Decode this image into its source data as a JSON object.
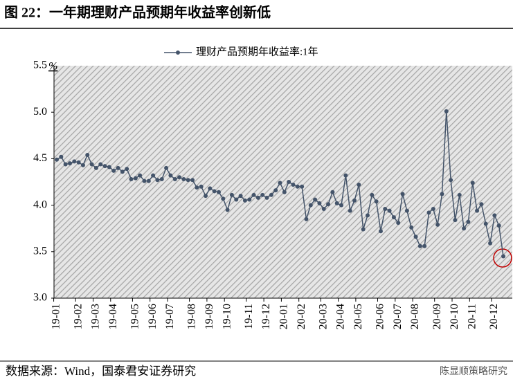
{
  "chart_data": {
    "type": "line",
    "title": "图 22：一年期理财产品预期年收益率创新低",
    "y_unit": "%",
    "source": "数据来源：Wind，国泰君安证券研究",
    "watermark": "陈显顺策略研究",
    "categories": [
      "19-01",
      null,
      null,
      null,
      null,
      "19-02",
      null,
      null,
      null,
      "19-03",
      null,
      null,
      null,
      "19-04",
      null,
      null,
      null,
      null,
      "19-05",
      null,
      null,
      null,
      "19-06",
      null,
      null,
      null,
      "19-07",
      null,
      null,
      null,
      null,
      "19-08",
      null,
      null,
      null,
      "19-09",
      null,
      null,
      null,
      "19-10",
      null,
      null,
      null,
      null,
      "19-11",
      null,
      null,
      null,
      "19-12",
      null,
      null,
      null,
      "20-01",
      null,
      null,
      null,
      "20-02",
      null,
      null,
      null,
      null,
      "20-03",
      null,
      null,
      null,
      "20-04",
      null,
      null,
      null,
      "20-05",
      null,
      null,
      null,
      null,
      "20-06",
      null,
      null,
      null,
      "20-07",
      null,
      null,
      null,
      "20-08",
      null,
      null,
      null,
      null,
      "20-09",
      null,
      null,
      null,
      "20-10",
      null,
      null,
      null,
      "20-11",
      null,
      null,
      null,
      null,
      "20-12",
      null,
      null
    ],
    "series": [
      {
        "name": "理财产品预期年收益率:1年",
        "color": "#44546a",
        "values": [
          4.49,
          4.52,
          4.44,
          4.45,
          4.47,
          4.46,
          4.43,
          4.54,
          4.44,
          4.4,
          4.44,
          4.42,
          4.41,
          4.37,
          4.4,
          4.36,
          4.39,
          4.28,
          4.29,
          4.32,
          4.26,
          4.26,
          4.32,
          4.27,
          4.28,
          4.4,
          4.32,
          4.28,
          4.3,
          4.28,
          4.27,
          4.27,
          4.19,
          4.2,
          4.1,
          4.18,
          4.15,
          4.14,
          4.07,
          3.95,
          4.11,
          4.06,
          4.1,
          4.05,
          4.06,
          4.11,
          4.08,
          4.11,
          4.08,
          4.11,
          4.16,
          4.24,
          4.14,
          4.25,
          4.22,
          4.2,
          4.2,
          3.85,
          4.0,
          4.06,
          4.02,
          3.96,
          4.01,
          4.14,
          4.02,
          4.0,
          4.32,
          3.94,
          4.05,
          4.22,
          3.74,
          3.89,
          4.11,
          4.04,
          3.72,
          3.96,
          3.94,
          3.87,
          3.81,
          4.12,
          3.94,
          3.76,
          3.66,
          3.56,
          3.56,
          3.92,
          3.96,
          3.79,
          4.12,
          5.01,
          4.27,
          3.84,
          4.11,
          3.75,
          3.82,
          4.24,
          3.94,
          4.01,
          3.8,
          3.59,
          3.89,
          3.78,
          3.45
        ]
      }
    ],
    "ylim": [
      3.0,
      5.5
    ],
    "yticks": [
      {
        "value": 3,
        "label": "3.0"
      },
      3.5,
      {
        "value": 4,
        "label": "4.0"
      },
      4.5,
      {
        "value": 5,
        "label": "5.0"
      },
      5.5
    ],
    "legend": "top",
    "grid": false
  }
}
